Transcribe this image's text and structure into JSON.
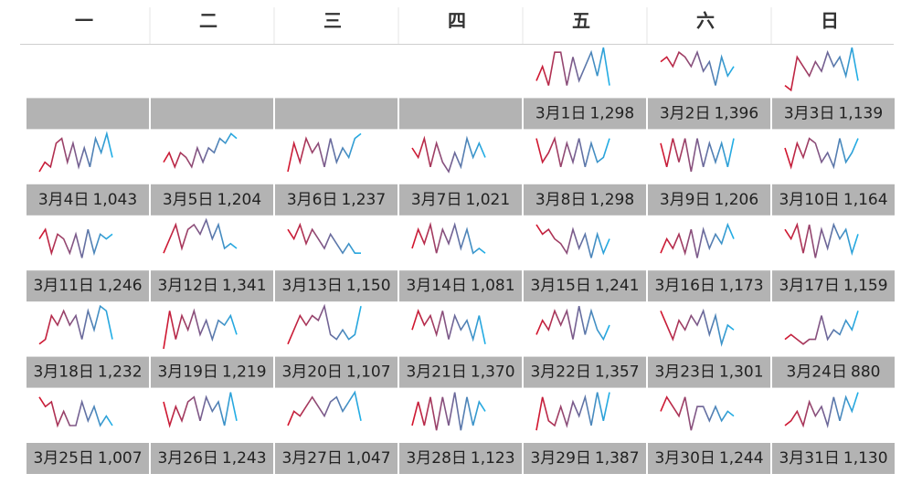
{
  "weekdays": [
    "一",
    "二",
    "三",
    "四",
    "五",
    "六",
    "日"
  ],
  "spark_colors": [
    "#d5132b",
    "#7b5b8b",
    "#1eb0e8"
  ],
  "spark_range": [
    0,
    10
  ],
  "weeks": [
    [
      null,
      null,
      null,
      null,
      {
        "date": "3月1日",
        "total": "1,298",
        "spark": [
          3,
          6,
          2,
          9,
          9,
          2,
          8,
          3,
          6,
          9,
          4,
          10,
          2
        ]
      },
      {
        "date": "3月2日",
        "total": "1,396",
        "spark": [
          7,
          8,
          6,
          9,
          8,
          6,
          9,
          5,
          7,
          2,
          8,
          4,
          6
        ]
      },
      {
        "date": "3月3日",
        "total": "1,139",
        "spark": [
          2,
          1,
          8,
          6,
          4,
          7,
          5,
          9,
          6,
          8,
          4,
          10,
          3
        ]
      }
    ],
    [
      {
        "date": "3月4日",
        "total": "1,043",
        "spark": [
          2,
          4,
          3,
          8,
          9,
          4,
          8,
          3,
          7,
          3,
          9,
          6,
          10,
          5
        ]
      },
      {
        "date": "3月5日",
        "total": "1,204",
        "spark": [
          4,
          6,
          3,
          6,
          5,
          3,
          7,
          4,
          7,
          6,
          9,
          8,
          10,
          9
        ]
      },
      {
        "date": "3月6日",
        "total": "1,237",
        "spark": [
          2,
          8,
          4,
          9,
          6,
          8,
          3,
          9,
          4,
          7,
          5,
          9,
          10
        ]
      },
      {
        "date": "3月7日",
        "total": "1,021",
        "spark": [
          7,
          5,
          9,
          3,
          8,
          4,
          2,
          6,
          3,
          9,
          5,
          8,
          5
        ]
      },
      {
        "date": "3月8日",
        "total": "1,298",
        "spark": [
          9,
          4,
          6,
          9,
          3,
          8,
          4,
          9,
          3,
          8,
          4,
          5,
          9
        ]
      },
      {
        "date": "3月9日",
        "total": "1,206",
        "spark": [
          8,
          3,
          9,
          4,
          9,
          2,
          9,
          3,
          8,
          4,
          8,
          3,
          9
        ]
      },
      {
        "date": "3月10日",
        "total": "1,164",
        "spark": [
          7,
          3,
          8,
          5,
          9,
          8,
          4,
          6,
          3,
          9,
          4,
          6,
          9
        ]
      }
    ],
    [
      {
        "date": "3月11日",
        "total": "1,246",
        "spark": [
          6,
          8,
          3,
          7,
          6,
          3,
          7,
          2,
          8,
          3,
          7,
          6,
          7
        ]
      },
      {
        "date": "3月12日",
        "total": "1,341",
        "spark": [
          3,
          6,
          9,
          4,
          8,
          9,
          7,
          10,
          6,
          9,
          4,
          5,
          4
        ]
      },
      {
        "date": "3月13日",
        "total": "1,150",
        "spark": [
          8,
          6,
          9,
          5,
          8,
          6,
          4,
          7,
          5,
          3,
          5,
          3,
          3
        ]
      },
      {
        "date": "3月14日",
        "total": "1,081",
        "spark": [
          4,
          8,
          5,
          9,
          3,
          8,
          5,
          9,
          4,
          8,
          3,
          4,
          3
        ]
      },
      {
        "date": "3月15日",
        "total": "1,241",
        "spark": [
          9,
          7,
          8,
          6,
          5,
          3,
          8,
          4,
          7,
          2,
          7,
          3,
          6
        ]
      },
      {
        "date": "3月16日",
        "total": "1,173",
        "spark": [
          3,
          6,
          4,
          7,
          3,
          8,
          2,
          8,
          4,
          7,
          5,
          9,
          6
        ]
      },
      {
        "date": "3月17日",
        "total": "1,159",
        "spark": [
          8,
          6,
          9,
          3,
          9,
          2,
          8,
          4,
          9,
          6,
          8,
          3,
          7
        ]
      }
    ],
    [
      {
        "date": "3月18日",
        "total": "1,232",
        "spark": [
          2,
          3,
          8,
          6,
          9,
          6,
          8,
          3,
          9,
          5,
          10,
          9,
          3
        ]
      },
      {
        "date": "3月19日",
        "total": "1,219",
        "spark": [
          1,
          9,
          3,
          8,
          5,
          9,
          4,
          7,
          3,
          7,
          6,
          8,
          4
        ]
      },
      {
        "date": "3月20日",
        "total": "1,107",
        "spark": [
          2,
          5,
          8,
          6,
          8,
          7,
          10,
          4,
          3,
          5,
          3,
          4,
          10
        ]
      },
      {
        "date": "3月21日",
        "total": "1,370",
        "spark": [
          5,
          9,
          6,
          8,
          4,
          9,
          3,
          8,
          5,
          7,
          3,
          8,
          2
        ]
      },
      {
        "date": "3月22日",
        "total": "1,357",
        "spark": [
          4,
          7,
          5,
          9,
          6,
          9,
          3,
          10,
          4,
          9,
          5,
          3,
          6
        ]
      },
      {
        "date": "3月23日",
        "total": "1,301",
        "spark": [
          9,
          6,
          3,
          7,
          5,
          8,
          6,
          9,
          4,
          8,
          2,
          6,
          5
        ]
      },
      {
        "date": "3月24日",
        "total": "880",
        "spark": [
          3,
          4,
          3,
          2,
          3,
          3,
          8,
          3,
          5,
          4,
          7,
          5,
          9
        ]
      }
    ],
    [
      {
        "date": "3月25日",
        "total": "1,007",
        "spark": [
          9,
          7,
          8,
          3,
          6,
          3,
          3,
          8,
          4,
          7,
          3,
          5,
          3
        ]
      },
      {
        "date": "3月26日",
        "total": "1,243",
        "spark": [
          8,
          3,
          7,
          4,
          8,
          9,
          4,
          9,
          6,
          8,
          3,
          10,
          4
        ]
      },
      {
        "date": "3月27日",
        "total": "1,047",
        "spark": [
          3,
          6,
          5,
          7,
          9,
          7,
          5,
          8,
          9,
          6,
          8,
          10,
          4
        ]
      },
      {
        "date": "3月28日",
        "total": "1,123",
        "spark": [
          3,
          8,
          3,
          9,
          2,
          9,
          3,
          10,
          2,
          9,
          3,
          8,
          6
        ]
      },
      {
        "date": "3月29日",
        "total": "1,387",
        "spark": [
          2,
          9,
          4,
          3,
          7,
          3,
          8,
          5,
          9,
          3,
          10,
          4,
          10
        ]
      },
      {
        "date": "3月30日",
        "total": "1,244",
        "spark": [
          6,
          9,
          7,
          5,
          9,
          2,
          7,
          7,
          4,
          7,
          4,
          6,
          5
        ]
      },
      {
        "date": "3月31日",
        "total": "1,130",
        "spark": [
          3,
          4,
          6,
          3,
          8,
          5,
          7,
          3,
          9,
          4,
          9,
          6,
          10
        ]
      }
    ]
  ]
}
